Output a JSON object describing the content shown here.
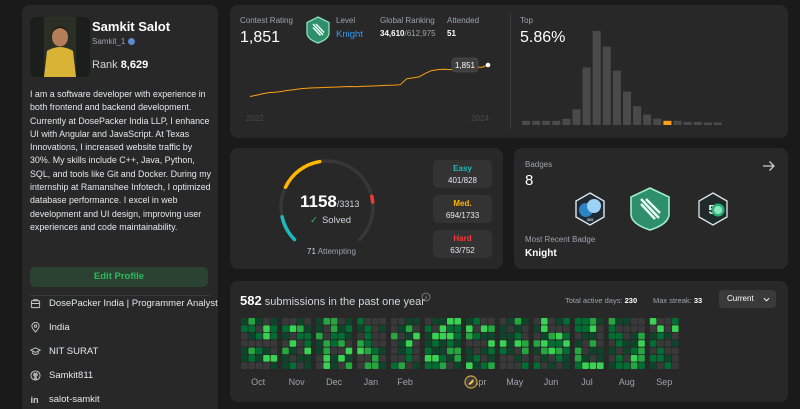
{
  "profile": {
    "name": "Samkit Salot",
    "username": "Samkit_1",
    "rank_label": "Rank",
    "rank_value": "8,629",
    "bio": "I am a software developer with experience in both frontend and backend development. Currently at DosePacker India LLP, I enhance UI with Angular and JavaScript. At Texas Innovations, I increased website traffic by 30%. My skills include C++, Java, Python, SQL, and tools like Git and Docker. During my internship at Ramanshee Infotech, I optimized database performance. I excel in web development and UI design, improving user experiences and code maintainability.",
    "edit_label": "Edit Profile",
    "company": "DosePacker India | Programmer Analyst",
    "location": "India",
    "school": "NIT SURAT",
    "github": "Samkit811",
    "linkedin": "salot-samkit"
  },
  "contest": {
    "rating_label": "Contest Rating",
    "rating_value": "1,851",
    "level_label": "Level",
    "level_value": "Knight",
    "global_label": "Global Ranking",
    "global_value": "34,610",
    "global_total": "/612,975",
    "attended_label": "Attended",
    "attended_value": "51",
    "top_label": "Top",
    "top_value": "5.86%",
    "tooltip_value": "1,851",
    "year_start": "2022",
    "year_end": "2024",
    "rating_series": [
      1505,
      1520,
      1535,
      1548,
      1552,
      1560,
      1572,
      1580,
      1590,
      1595,
      1600,
      1602,
      1605,
      1608,
      1610,
      1612,
      1615,
      1612,
      1618,
      1620,
      1622,
      1625,
      1628,
      1630,
      1635,
      1700,
      1710,
      1720,
      1760,
      1790,
      1800,
      1805,
      1800,
      1810,
      1820,
      1815,
      1830,
      1825,
      1851
    ],
    "distribution": [
      4,
      4,
      4,
      4,
      6,
      15,
      55,
      90,
      75,
      52,
      32,
      18,
      10,
      6,
      4,
      4,
      3,
      3,
      2,
      2
    ],
    "highlight_index": 14,
    "accent_color": "#ffa116"
  },
  "problems": {
    "solved": "1158",
    "total": "/3313",
    "solved_label": "Solved",
    "attempting_count": "71",
    "attempting_label": "Attempting",
    "easy_label": "Easy",
    "easy_value": "401/828",
    "easy_color": "#1cbaba",
    "medium_label": "Med.",
    "medium_value": "694/1733",
    "medium_color": "#ffb700",
    "hard_label": "Hard",
    "hard_value": "63/752",
    "hard_color": "#f63737"
  },
  "badges": {
    "label": "Badges",
    "count": "8",
    "recent_label": "Most Recent Badge",
    "recent_name": "Knight",
    "icons": [
      "badge-365-icon",
      "knight-badge-icon",
      "badge-50-days-icon"
    ]
  },
  "submissions": {
    "count": "582",
    "title_rest": "submissions in the past one year",
    "active_label": "Total active days:",
    "active_value": "230",
    "streak_label": "Max streak:",
    "streak_value": "33",
    "selector_value": "Current",
    "months": [
      "Oct",
      "Nov",
      "Dec",
      "Jan",
      "Feb",
      "Mar",
      "Apr",
      "May",
      "Jun",
      "Jul",
      "Aug",
      "Sep"
    ],
    "month_weeks": [
      5,
      4,
      5,
      4,
      4,
      5,
      4,
      4,
      5,
      4,
      5,
      4
    ],
    "palette": [
      "#393939",
      "#0e4429",
      "#006d32",
      "#26a641",
      "#39d353"
    ]
  }
}
